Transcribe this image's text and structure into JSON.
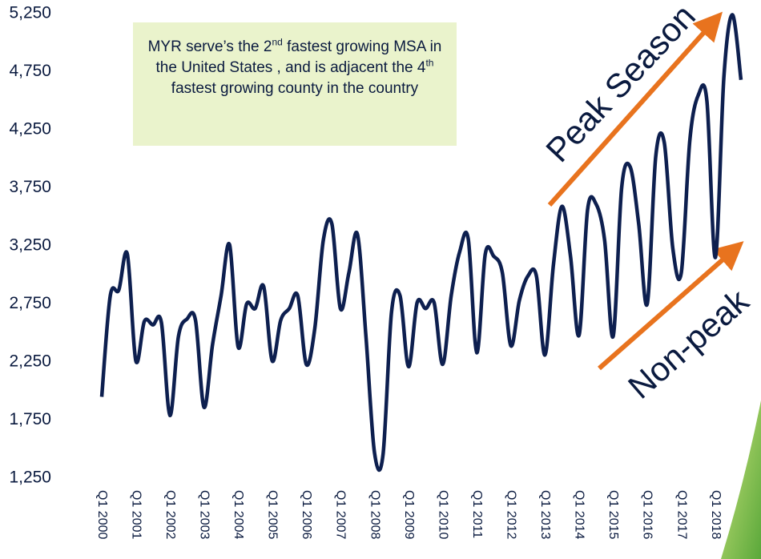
{
  "chart_data": {
    "type": "line",
    "categories": [
      "Q1 2000",
      null,
      null,
      null,
      "Q1 2001",
      null,
      null,
      null,
      "Q1 2002",
      null,
      null,
      null,
      "Q1 2003",
      null,
      null,
      null,
      "Q1 2004",
      null,
      null,
      null,
      "Q1 2005",
      null,
      null,
      null,
      "Q1 2006",
      null,
      null,
      null,
      "Q1 2007",
      null,
      null,
      null,
      "Q1 2008",
      null,
      null,
      null,
      "Q1 2009",
      null,
      null,
      null,
      "Q1 2010",
      null,
      null,
      null,
      "Q1 2011",
      null,
      null,
      null,
      "Q1 2012",
      null,
      null,
      null,
      "Q1 2013",
      null,
      null,
      null,
      "Q1 2014",
      null,
      null,
      null,
      "Q1 2015",
      null,
      null,
      null,
      "Q1 2016",
      null,
      null,
      null,
      "Q1 2017",
      null,
      null,
      null,
      "Q1 2018",
      null,
      null,
      null
    ],
    "series": [
      {
        "color": "#0d1f4f",
        "values": [
          1950,
          2820,
          2870,
          3180,
          2260,
          2600,
          2570,
          2590,
          1790,
          2470,
          2620,
          2610,
          1860,
          2400,
          2820,
          3260,
          2380,
          2750,
          2710,
          2900,
          2260,
          2610,
          2710,
          2820,
          2230,
          2540,
          3300,
          3440,
          2710,
          3020,
          3350,
          2470,
          1470,
          1450,
          2680,
          2820,
          2210,
          2760,
          2710,
          2760,
          2230,
          2820,
          3200,
          3310,
          2330,
          3180,
          3160,
          3020,
          2390,
          2780,
          2990,
          2990,
          2310,
          3090,
          3590,
          3160,
          2480,
          3560,
          3610,
          3300,
          2470,
          3750,
          3930,
          3440,
          2750,
          4020,
          4140,
          3230,
          3020,
          4160,
          4550,
          4500,
          3150,
          4710,
          5240,
          4680
        ]
      }
    ],
    "ylim": [
      1250,
      5250
    ],
    "yticks": [
      {
        "value": 1250,
        "label": "1,250"
      },
      {
        "value": 1750,
        "label": "1,750"
      },
      {
        "value": 2250,
        "label": "2,250"
      },
      {
        "value": 2750,
        "label": "2,750"
      },
      {
        "value": 3250,
        "label": "3,250"
      },
      {
        "value": 3750,
        "label": "3,750"
      },
      {
        "value": 4250,
        "label": "4,250"
      },
      {
        "value": 4750,
        "label": "4,750"
      },
      {
        "value": 5250,
        "label": "5,250"
      }
    ],
    "annotation": [
      "MYR serve’s the 2",
      "nd",
      " fastest growing MSA in the United States , and is adjacent the 4",
      "th",
      " fastest growing county in the country"
    ],
    "peak_label": "Peak Season",
    "nonpeak_label": "Non-peak"
  }
}
